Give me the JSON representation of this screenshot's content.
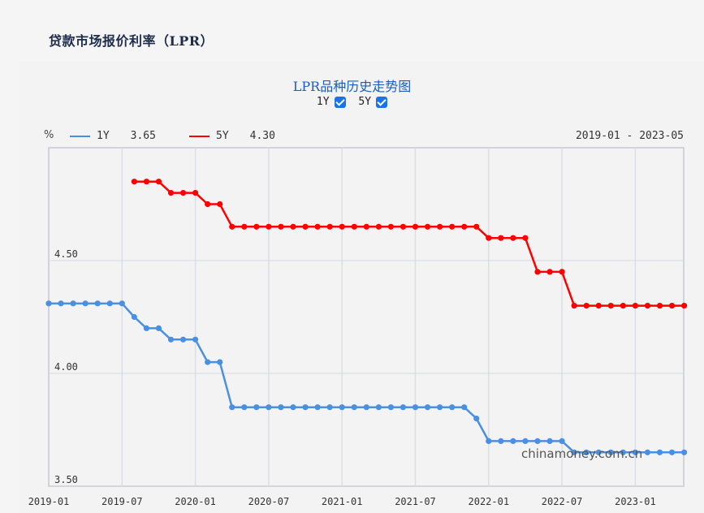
{
  "page": {
    "title": "贷款市场报价利率（LPR）"
  },
  "chart": {
    "title": "LPR品种历史走势图",
    "toggles": [
      {
        "label": "1Y",
        "checked": true
      },
      {
        "label": "5Y",
        "checked": true
      }
    ],
    "unit": "%",
    "legend": [
      {
        "label": "1Y",
        "latest": "3.65",
        "color": "#4a90e2"
      },
      {
        "label": "5Y",
        "latest": "4.30",
        "color": "#ff0000"
      }
    ],
    "range_label": "2019-01 - 2023-05",
    "watermark": "chinamoney.com.cn"
  },
  "chart_data": {
    "type": "line",
    "title": "LPR品种历史走势图",
    "xlabel": "",
    "ylabel": "%",
    "x_start": "2019-01",
    "x_end": "2023-05",
    "x_ticks": [
      "2019-01",
      "2019-07",
      "2020-01",
      "2020-07",
      "2021-01",
      "2021-07",
      "2022-01",
      "2022-07",
      "2023-01"
    ],
    "y_ticks": [
      "3.50",
      "4.00",
      "4.50"
    ],
    "ylim": [
      3.5,
      4.95
    ],
    "grid": true,
    "legend_position": "top-left",
    "series": [
      {
        "name": "1Y",
        "color": "#4a90e2",
        "start": "2019-01",
        "values": [
          4.31,
          4.31,
          4.31,
          4.31,
          4.31,
          4.31,
          4.31,
          4.25,
          4.2,
          4.2,
          4.15,
          4.15,
          4.15,
          4.05,
          4.05,
          3.85,
          3.85,
          3.85,
          3.85,
          3.85,
          3.85,
          3.85,
          3.85,
          3.85,
          3.85,
          3.85,
          3.85,
          3.85,
          3.85,
          3.85,
          3.85,
          3.85,
          3.85,
          3.85,
          3.85,
          3.8,
          3.7,
          3.7,
          3.7,
          3.7,
          3.7,
          3.7,
          3.7,
          3.65,
          3.65,
          3.65,
          3.65,
          3.65,
          3.65,
          3.65,
          3.65,
          3.65,
          3.65
        ]
      },
      {
        "name": "5Y",
        "color": "#ff0000",
        "start": "2019-08",
        "values": [
          4.85,
          4.85,
          4.85,
          4.8,
          4.8,
          4.8,
          4.75,
          4.75,
          4.65,
          4.65,
          4.65,
          4.65,
          4.65,
          4.65,
          4.65,
          4.65,
          4.65,
          4.65,
          4.65,
          4.65,
          4.65,
          4.65,
          4.65,
          4.65,
          4.65,
          4.65,
          4.65,
          4.65,
          4.65,
          4.6,
          4.6,
          4.6,
          4.6,
          4.45,
          4.45,
          4.45,
          4.3,
          4.3,
          4.3,
          4.3,
          4.3,
          4.3,
          4.3,
          4.3,
          4.3,
          4.3
        ]
      }
    ]
  }
}
